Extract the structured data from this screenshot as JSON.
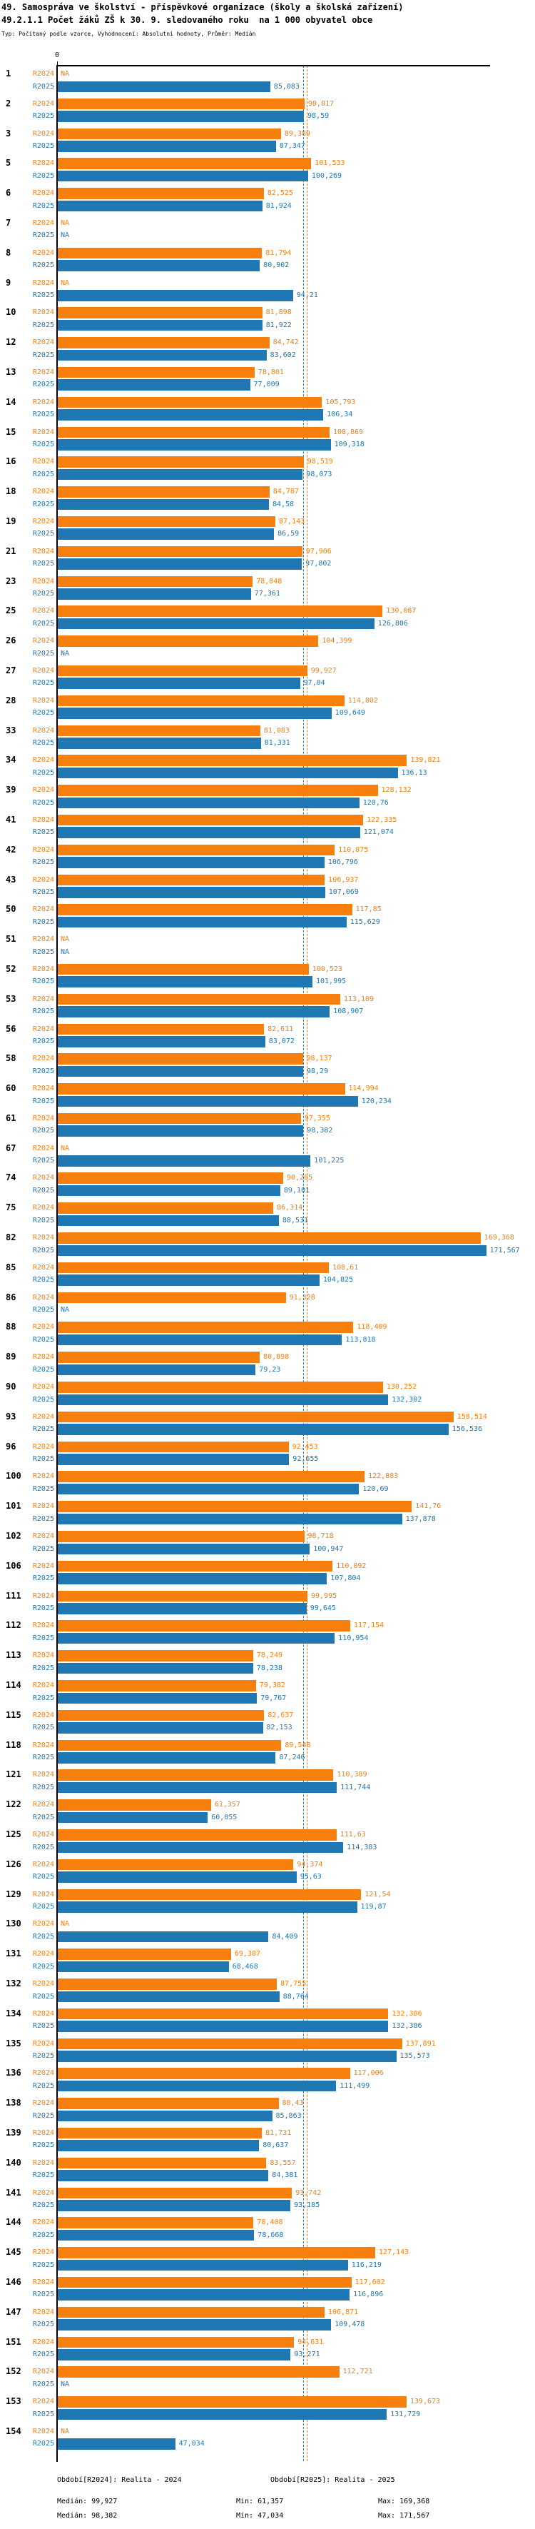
{
  "title": "49. Samospráva ve školství - příspěvkové organizace (školy a školská zařízení)",
  "subtitle": "49.2.1.1 Počet žáků ZŠ k 30. 9. sledovaného roku  na 1 000 obyvatel obce",
  "meta": "Typ: Počítaný podle vzorce, Vyhodnocení: Absolutní hodnoty, Průměr: Medián",
  "axis": {
    "zero_label": "0"
  },
  "colors": {
    "r2024": "#f77f0e",
    "r2025": "#1f77b4",
    "axis": "#000000"
  },
  "medians": {
    "r2024": 99.927,
    "r2025": 98.382
  },
  "na_label": "NA",
  "footer": {
    "r2024": {
      "period_label": "Období[R2024]: Realita - 2024",
      "median_label": "Medián: 99,927",
      "min_label": "Min: 61,357",
      "max_label": "Max: 169,368"
    },
    "r2025": {
      "period_label": "Období[R2025]: Realita - 2025",
      "median_label": "Medián: 98,382",
      "min_label": "Min: 47,034",
      "max_label": "Max: 171,567"
    }
  },
  "chart_data": {
    "type": "bar",
    "orientation": "horizontal",
    "title": "49.2.1.1 Počet žáků ZŠ k 30. 9. sledovaného roku na 1 000 obyvatel obce",
    "xlim": [
      0,
      173.5
    ],
    "grid": false,
    "legend_position": "bottom",
    "value_format": "decimal-comma",
    "categories": [
      "1",
      "2",
      "3",
      "5",
      "6",
      "7",
      "8",
      "9",
      "10",
      "12",
      "13",
      "14",
      "15",
      "16",
      "18",
      "19",
      "21",
      "23",
      "25",
      "26",
      "27",
      "28",
      "33",
      "34",
      "39",
      "41",
      "42",
      "43",
      "50",
      "51",
      "52",
      "53",
      "56",
      "58",
      "60",
      "61",
      "67",
      "74",
      "75",
      "82",
      "85",
      "86",
      "88",
      "89",
      "90",
      "93",
      "96",
      "100",
      "101",
      "102",
      "106",
      "111",
      "112",
      "113",
      "114",
      "115",
      "118",
      "121",
      "122",
      "125",
      "126",
      "129",
      "130",
      "131",
      "132",
      "134",
      "135",
      "136",
      "138",
      "139",
      "140",
      "141",
      "144",
      "145",
      "146",
      "147",
      "151",
      "152",
      "153",
      "154"
    ],
    "series": [
      {
        "name": "R2024",
        "color": "#f77f0e",
        "median": 99.927,
        "min": 61.357,
        "max": 169.368,
        "values": [
          null,
          98.817,
          89.389,
          101.533,
          82.525,
          null,
          81.794,
          null,
          81.898,
          84.742,
          78.801,
          105.793,
          108.869,
          98.519,
          84.787,
          87.143,
          97.906,
          78.048,
          130.087,
          104.399,
          99.927,
          114.802,
          81.083,
          139.821,
          128.132,
          122.335,
          110.875,
          106.937,
          117.85,
          null,
          100.523,
          113.109,
          82.611,
          98.137,
          114.994,
          97.355,
          null,
          90.285,
          86.314,
          169.368,
          108.61,
          91.328,
          118.409,
          80.898,
          130.252,
          158.514,
          92.453,
          122.883,
          141.76,
          98.718,
          110.092,
          99.995,
          117.154,
          78.249,
          79.382,
          82.637,
          89.548,
          110.389,
          61.357,
          111.63,
          94.374,
          121.54,
          null,
          69.387,
          87.755,
          132.386,
          137.891,
          117.006,
          88.43,
          81.731,
          83.557,
          93.742,
          78.408,
          127.143,
          117.602,
          106.871,
          94.631,
          112.721,
          139.673,
          null
        ]
      },
      {
        "name": "R2025",
        "color": "#1f77b4",
        "median": 98.382,
        "min": 47.034,
        "max": 171.567,
        "values": [
          85.083,
          98.59,
          87.347,
          100.269,
          81.924,
          null,
          80.902,
          94.21,
          81.922,
          83.602,
          77.009,
          106.34,
          109.318,
          98.073,
          84.58,
          86.59,
          97.802,
          77.361,
          126.806,
          null,
          97.04,
          109.649,
          81.331,
          136.13,
          120.76,
          121.074,
          106.796,
          107.069,
          115.629,
          null,
          101.995,
          108.907,
          83.072,
          98.29,
          120.234,
          98.382,
          101.225,
          89.101,
          88.531,
          171.567,
          104.825,
          null,
          113.818,
          79.23,
          132.302,
          156.536,
          92.655,
          120.69,
          137.878,
          100.947,
          107.804,
          99.645,
          110.954,
          78.238,
          79.767,
          82.153,
          87.246,
          111.744,
          60.055,
          114.383,
          95.63,
          119.87,
          84.409,
          68.468,
          88.764,
          132.386,
          135.573,
          111.499,
          85.863,
          80.637,
          84.381,
          93.185,
          78.668,
          116.219,
          116.896,
          109.478,
          93.271,
          null,
          131.729,
          47.034
        ]
      }
    ]
  }
}
